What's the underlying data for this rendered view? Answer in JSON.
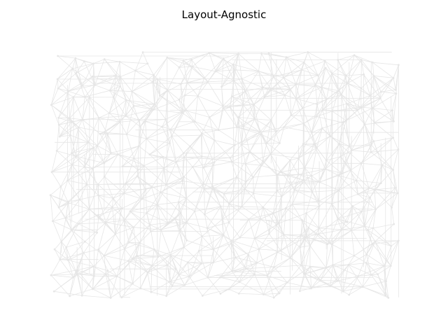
{
  "figure": {
    "title": "Layout-Agnostic"
  },
  "graph": {
    "edge_color": "#e6e6e6",
    "node_color": "#e6e6e6",
    "background": "#ffffff"
  }
}
